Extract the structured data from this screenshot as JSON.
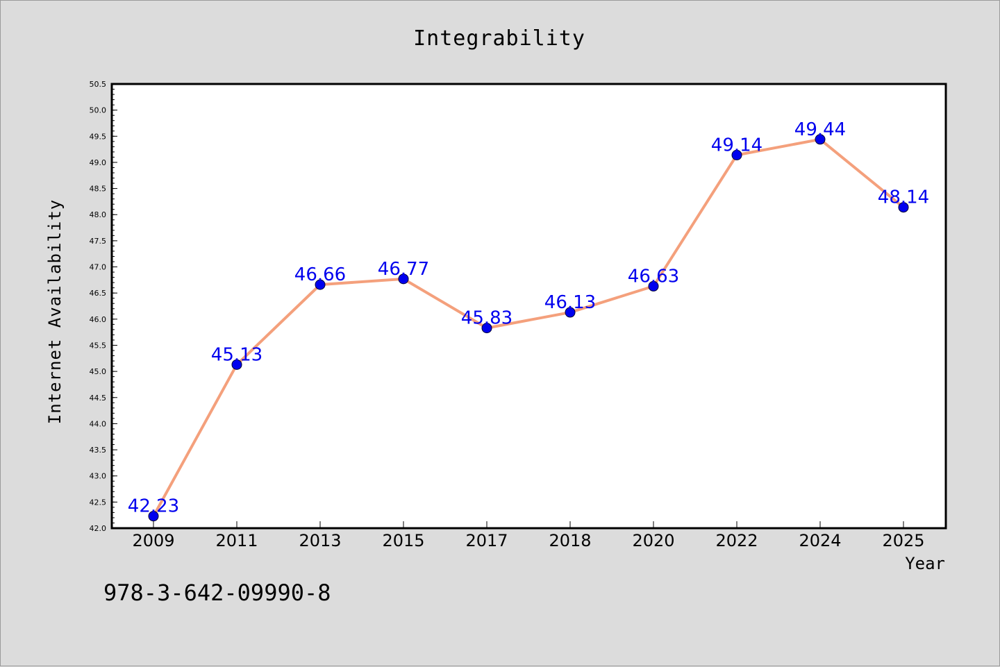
{
  "chart_data": {
    "type": "line",
    "title": "Integrability",
    "xlabel": "Year",
    "ylabel": "Internet Availability",
    "categories": [
      "2009",
      "2011",
      "2013",
      "2015",
      "2017",
      "2018",
      "2020",
      "2022",
      "2024",
      "2025"
    ],
    "series": [
      {
        "values": [
          42.23,
          45.13,
          46.66,
          46.77,
          45.83,
          46.13,
          46.63,
          49.14,
          49.44,
          48.14
        ]
      }
    ],
    "data_labels": [
      "42.23",
      "45.13",
      "46.66",
      "46.77",
      "45.83",
      "46.13",
      "46.63",
      "49.14",
      "49.44",
      "48.14"
    ],
    "ylim": [
      42.0,
      50.5
    ],
    "yticks": [
      "42.0",
      "42.5",
      "43.0",
      "43.5",
      "44.0",
      "44.5",
      "45.0",
      "45.5",
      "46.0",
      "46.5",
      "47.0",
      "47.5",
      "48.0",
      "48.5",
      "49.0",
      "49.5",
      "50.0",
      "50.5"
    ],
    "grid": false,
    "colors": {
      "line": "#f4a07c",
      "marker": "#0000ee",
      "label": "#0000ee",
      "background": "#dcdcdc",
      "plot_background": "#ffffff"
    }
  },
  "footer_text": "978-3-642-09990-8"
}
